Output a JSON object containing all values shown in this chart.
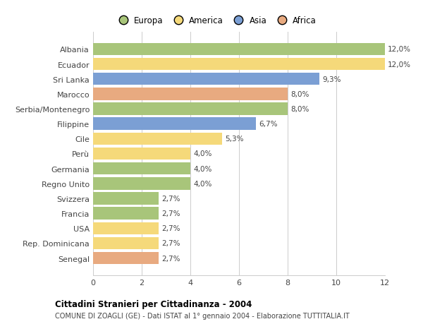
{
  "countries": [
    "Albania",
    "Ecuador",
    "Sri Lanka",
    "Marocco",
    "Serbia/Montenegro",
    "Filippine",
    "Cile",
    "Perù",
    "Germania",
    "Regno Unito",
    "Svizzera",
    "Francia",
    "USA",
    "Rep. Dominicana",
    "Senegal"
  ],
  "values": [
    12.0,
    12.0,
    9.3,
    8.0,
    8.0,
    6.7,
    5.3,
    4.0,
    4.0,
    4.0,
    2.7,
    2.7,
    2.7,
    2.7,
    2.7
  ],
  "labels": [
    "12,0%",
    "12,0%",
    "9,3%",
    "8,0%",
    "8,0%",
    "6,7%",
    "5,3%",
    "4,0%",
    "4,0%",
    "4,0%",
    "2,7%",
    "2,7%",
    "2,7%",
    "2,7%",
    "2,7%"
  ],
  "continents": [
    "Europa",
    "America",
    "Asia",
    "Africa",
    "Europa",
    "Asia",
    "America",
    "America",
    "Europa",
    "Europa",
    "Europa",
    "Europa",
    "America",
    "America",
    "Africa"
  ],
  "colors": {
    "Europa": "#a8c57a",
    "America": "#f5d97a",
    "Asia": "#7b9fd4",
    "Africa": "#e8aa80"
  },
  "legend_order": [
    "Europa",
    "America",
    "Asia",
    "Africa"
  ],
  "xlim": [
    0,
    12
  ],
  "xticks": [
    0,
    2,
    4,
    6,
    8,
    10,
    12
  ],
  "title": "Cittadini Stranieri per Cittadinanza - 2004",
  "subtitle": "COMUNE DI ZOAGLI (GE) - Dati ISTAT al 1° gennaio 2004 - Elaborazione TUTTITALIA.IT",
  "bg_color": "#ffffff",
  "grid_color": "#cccccc"
}
